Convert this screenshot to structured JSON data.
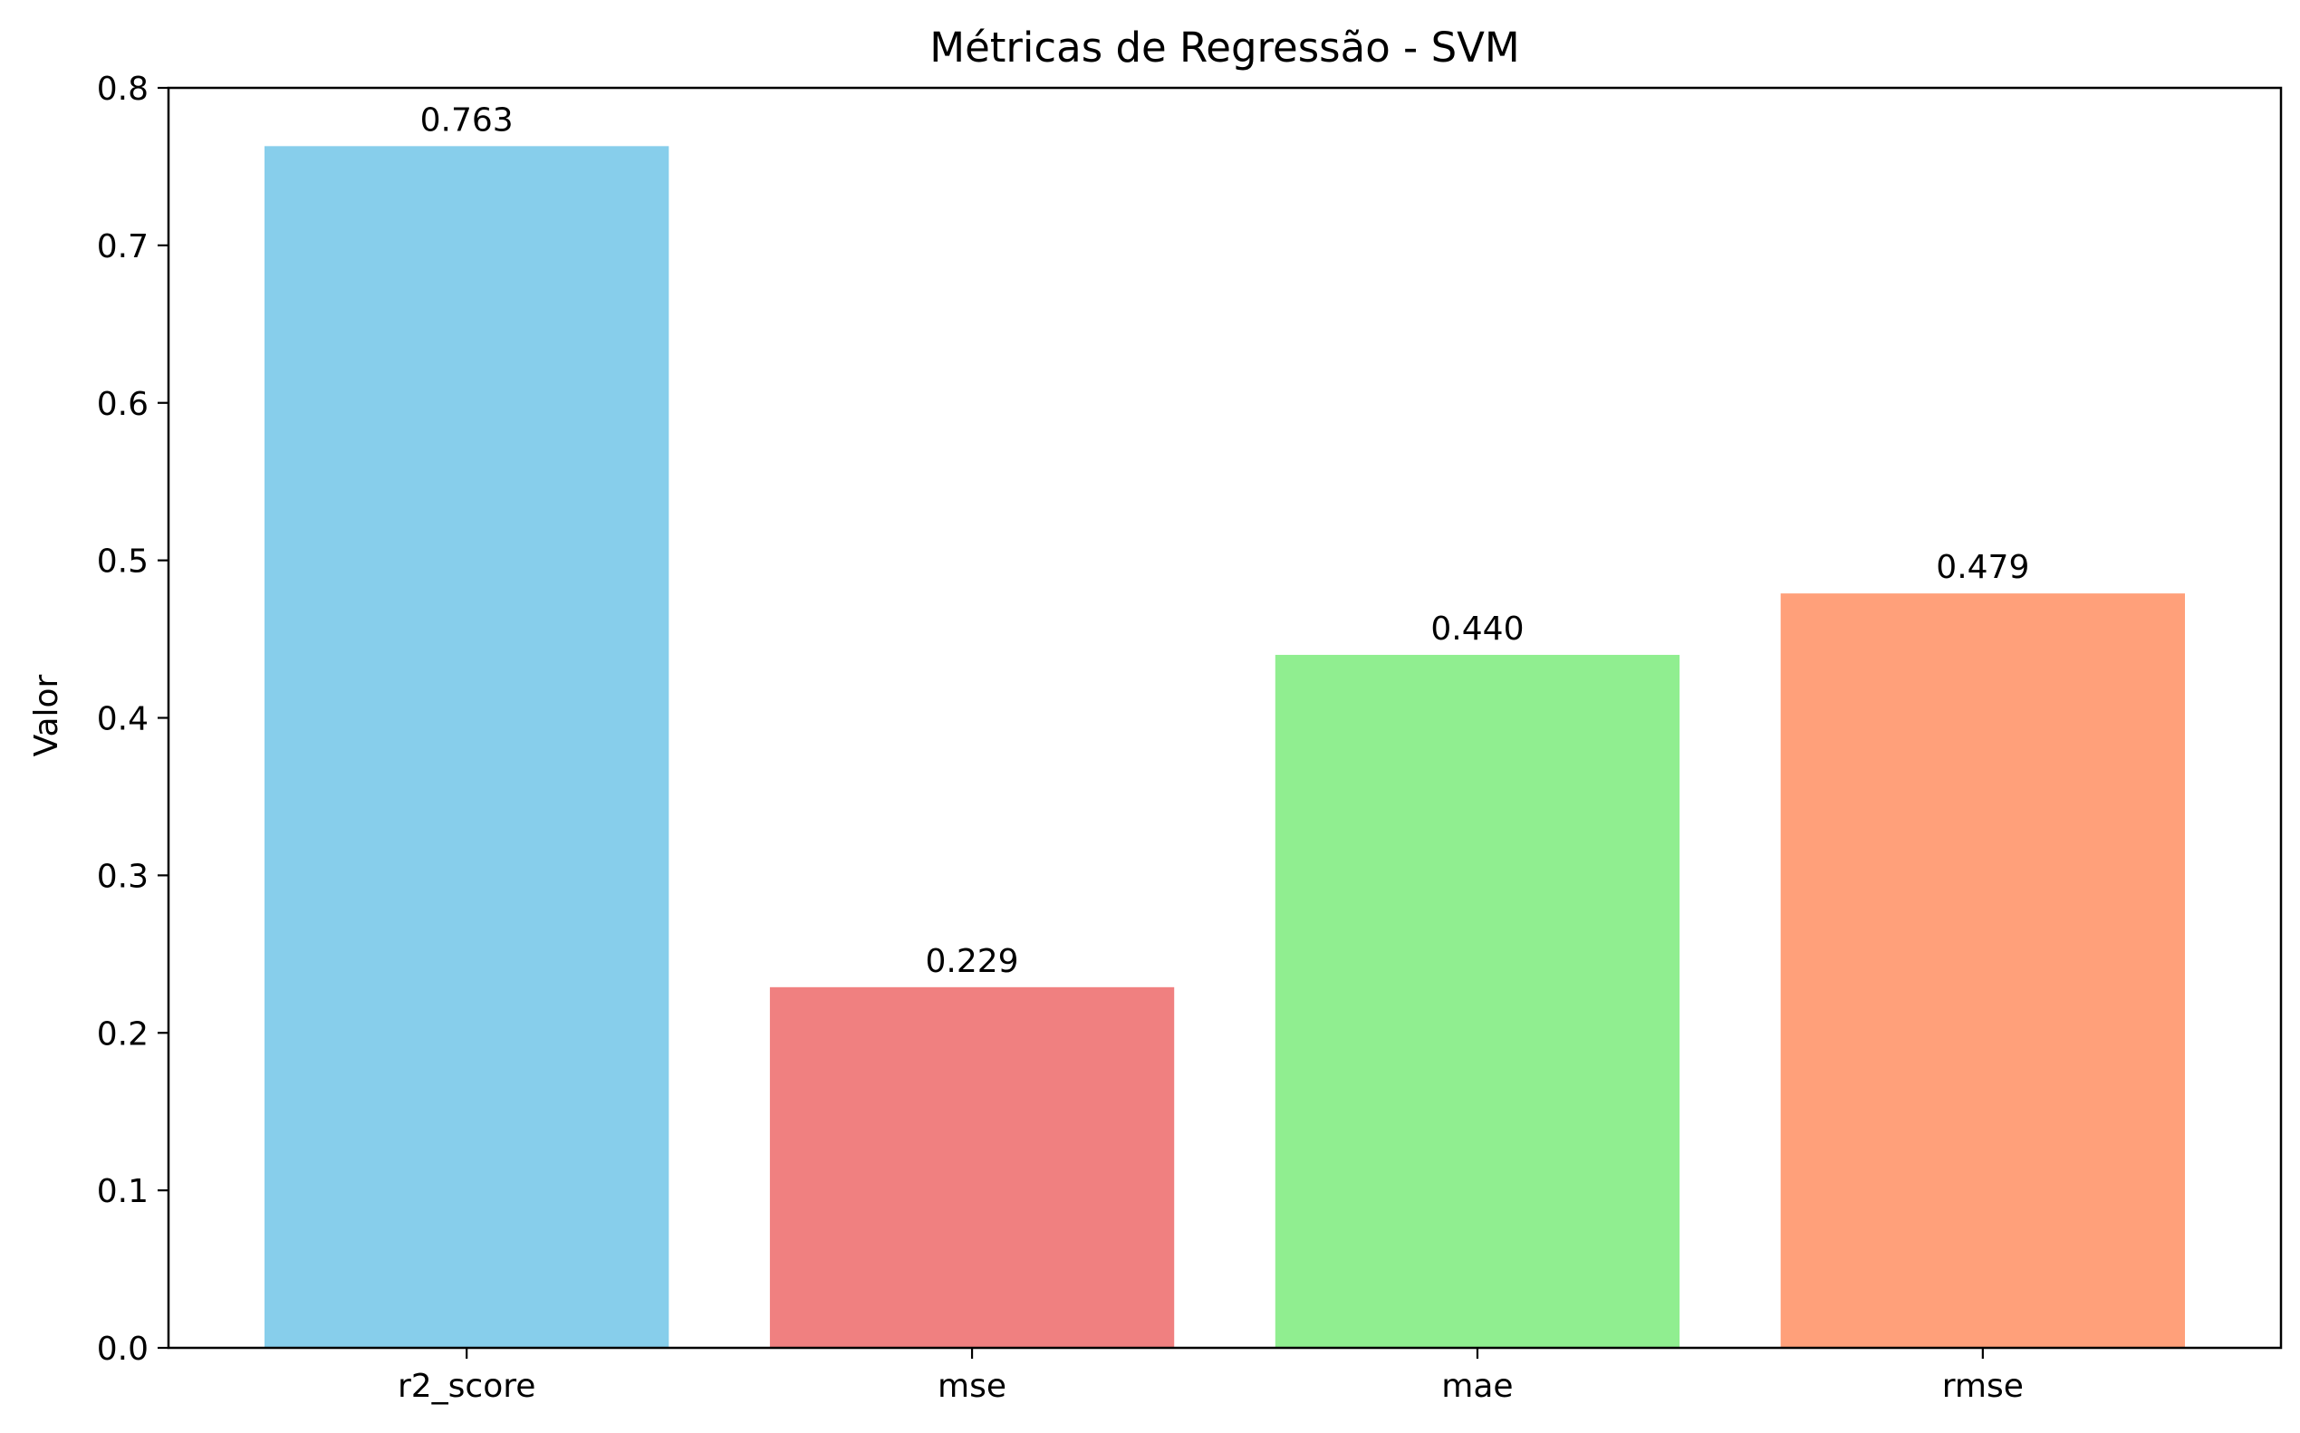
{
  "chart_data": {
    "type": "bar",
    "title": "Métricas de Regressão - SVM",
    "xlabel": "",
    "ylabel": "Valor",
    "categories": [
      "r2_score",
      "mse",
      "mae",
      "rmse"
    ],
    "values": [
      0.763,
      0.229,
      0.44,
      0.479
    ],
    "data_labels": [
      "0.763",
      "0.229",
      "0.440",
      "0.479"
    ],
    "colors": [
      "#87CEEB",
      "#F08080",
      "#90EE90",
      "#FFA07A"
    ],
    "ylim": [
      0,
      0.8
    ],
    "yticks": [
      0.0,
      0.1,
      0.2,
      0.3,
      0.4,
      0.5,
      0.6,
      0.7,
      0.8
    ],
    "ytick_labels": [
      "0.0",
      "0.1",
      "0.2",
      "0.3",
      "0.4",
      "0.5",
      "0.6",
      "0.7",
      "0.8"
    ],
    "grid": false,
    "legend": "none"
  }
}
